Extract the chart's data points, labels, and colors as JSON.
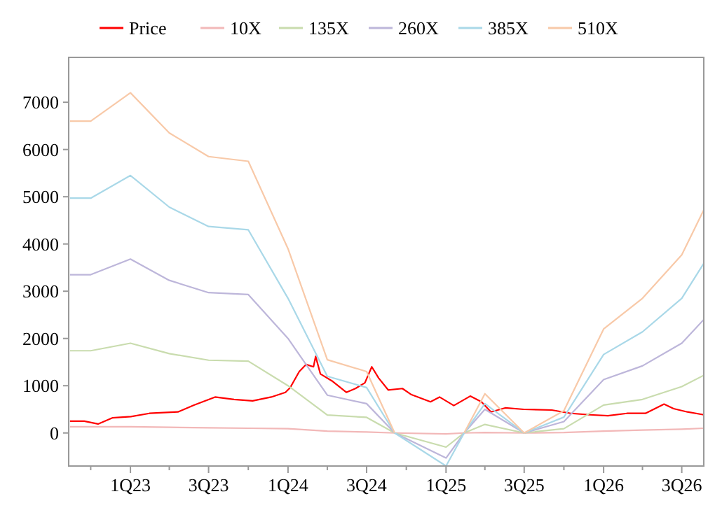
{
  "chart_data": {
    "type": "line",
    "legend": "top",
    "grid": false,
    "xlim": [
      "2022-08-11",
      "2026-08-21"
    ],
    "xticks": [
      {
        "value": "2022-10-01",
        "label": null
      },
      {
        "value": "2023-01-01",
        "label": "1Q23"
      },
      {
        "value": "2023-04-01",
        "label": null
      },
      {
        "value": "2023-07-01",
        "label": "3Q23"
      },
      {
        "value": "2023-10-01",
        "label": null
      },
      {
        "value": "2024-01-01",
        "label": "1Q24"
      },
      {
        "value": "2024-04-01",
        "label": null
      },
      {
        "value": "2024-07-01",
        "label": "3Q24"
      },
      {
        "value": "2024-10-01",
        "label": null
      },
      {
        "value": "2025-01-01",
        "label": "1Q25"
      },
      {
        "value": "2025-04-01",
        "label": null
      },
      {
        "value": "2025-07-01",
        "label": "3Q25"
      },
      {
        "value": "2025-10-01",
        "label": null
      },
      {
        "value": "2026-01-01",
        "label": "1Q26"
      },
      {
        "value": "2026-04-01",
        "label": null
      },
      {
        "value": "2026-07-01",
        "label": "3Q26"
      }
    ],
    "ylim": [
      -700,
      7950
    ],
    "yticks": [
      0,
      1000,
      2000,
      3000,
      4000,
      5000,
      6000,
      7000
    ],
    "series": [
      {
        "name": "Price",
        "color": "#ff0000",
        "x": [
          "2022-08-14",
          "2022-09-16",
          "2022-10-18",
          "2022-11-20",
          "2023-01-02",
          "2023-02-14",
          "2023-04-21",
          "2023-05-28",
          "2023-07-16",
          "2023-08-29",
          "2023-10-11",
          "2023-11-23",
          "2023-12-26",
          "2024-01-06",
          "2024-01-27",
          "2024-02-12",
          "2024-02-29",
          "2024-03-05",
          "2024-03-16",
          "2024-04-12",
          "2024-05-15",
          "2024-06-05",
          "2024-06-27",
          "2024-07-13",
          "2024-07-29",
          "2024-08-20",
          "2024-09-22",
          "2024-10-13",
          "2024-11-26",
          "2024-12-17",
          "2025-01-19",
          "2025-02-26",
          "2025-03-24",
          "2025-04-15",
          "2025-05-18",
          "2025-06-30",
          "2025-09-03",
          "2025-10-17",
          "2025-11-29",
          "2026-01-11",
          "2026-02-24",
          "2026-04-08",
          "2026-05-21",
          "2026-06-12",
          "2026-07-14",
          "2026-08-21"
        ],
        "values": [
          250,
          250,
          190,
          320,
          345,
          415,
          445,
          590,
          760,
          710,
          680,
          760,
          860,
          960,
          1300,
          1450,
          1400,
          1620,
          1250,
          1100,
          860,
          940,
          1060,
          1400,
          1160,
          910,
          940,
          810,
          660,
          760,
          580,
          780,
          660,
          445,
          530,
          500,
          485,
          415,
          385,
          365,
          415,
          415,
          610,
          515,
          445,
          385
        ]
      },
      {
        "name": "10X",
        "color": "#f2b8b8",
        "x": [
          "2022-08-14",
          "2022-10-01",
          "2023-01-01",
          "2023-04-01",
          "2023-07-01",
          "2023-10-01",
          "2024-01-01",
          "2024-04-01",
          "2024-07-01",
          "2024-09-04",
          "2025-01-01",
          "2025-02-12",
          "2025-04-01",
          "2025-07-01",
          "2025-10-01",
          "2026-01-01",
          "2026-04-01",
          "2026-07-01",
          "2026-08-21"
        ],
        "values": [
          130,
          130,
          130,
          120,
          110,
          100,
          90,
          40,
          20,
          0,
          -20,
          0,
          10,
          0,
          10,
          40,
          60,
          80,
          100
        ]
      },
      {
        "name": "135X",
        "color": "#c9dcae",
        "x": [
          "2022-08-14",
          "2022-10-01",
          "2023-01-01",
          "2023-04-01",
          "2023-07-01",
          "2023-10-01",
          "2024-01-01",
          "2024-04-01",
          "2024-07-01",
          "2024-09-04",
          "2025-01-01",
          "2025-02-12",
          "2025-04-01",
          "2025-07-01",
          "2025-10-01",
          "2026-01-01",
          "2026-04-01",
          "2026-07-01",
          "2026-08-21"
        ],
        "values": [
          1740,
          1740,
          1900,
          1680,
          1540,
          1520,
          1000,
          380,
          330,
          0,
          -300,
          0,
          180,
          0,
          90,
          590,
          710,
          980,
          1220
        ]
      },
      {
        "name": "260X",
        "color": "#bdb6da",
        "x": [
          "2022-08-14",
          "2022-10-01",
          "2023-01-01",
          "2023-04-01",
          "2023-07-01",
          "2023-10-01",
          "2024-01-01",
          "2024-04-01",
          "2024-07-01",
          "2024-09-04",
          "2025-01-01",
          "2025-02-12",
          "2025-04-01",
          "2025-07-01",
          "2025-10-01",
          "2026-01-01",
          "2026-04-01",
          "2026-07-01",
          "2026-08-21"
        ],
        "values": [
          3350,
          3350,
          3680,
          3230,
          2970,
          2930,
          2000,
          800,
          620,
          0,
          -530,
          0,
          500,
          0,
          240,
          1130,
          1420,
          1900,
          2400
        ]
      },
      {
        "name": "385X",
        "color": "#a9d8e8",
        "x": [
          "2022-08-14",
          "2022-10-01",
          "2023-01-01",
          "2023-04-01",
          "2023-07-01",
          "2023-10-01",
          "2024-01-01",
          "2024-04-01",
          "2024-07-01",
          "2024-09-04",
          "2025-01-01",
          "2025-02-12",
          "2025-04-01",
          "2025-07-01",
          "2025-10-01",
          "2026-01-01",
          "2026-04-01",
          "2026-07-01",
          "2026-08-21"
        ],
        "values": [
          4970,
          4970,
          5450,
          4780,
          4370,
          4300,
          2850,
          1200,
          960,
          0,
          -700,
          0,
          620,
          0,
          335,
          1660,
          2140,
          2850,
          3590
        ]
      },
      {
        "name": "510X",
        "color": "#f8c9a8",
        "x": [
          "2022-08-14",
          "2022-10-01",
          "2023-01-01",
          "2023-04-01",
          "2023-07-01",
          "2023-10-01",
          "2024-01-01",
          "2024-04-01",
          "2024-07-01",
          "2024-09-04",
          "2025-01-01",
          "2025-02-12",
          "2025-04-01",
          "2025-07-01",
          "2025-10-01",
          "2026-01-01",
          "2026-04-01",
          "2026-07-01",
          "2026-08-21"
        ],
        "values": [
          6600,
          6600,
          7200,
          6350,
          5850,
          5750,
          3900,
          1550,
          1300,
          0,
          null,
          0,
          830,
          0,
          470,
          2200,
          2850,
          3770,
          4720
        ]
      }
    ]
  }
}
